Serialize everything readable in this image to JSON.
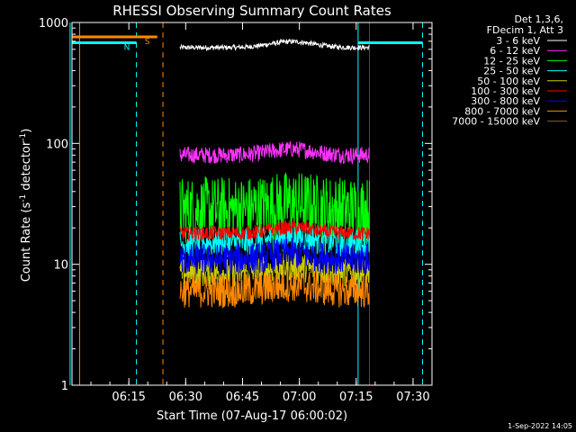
{
  "chart_data": {
    "type": "line",
    "title": "RHESSI Observing Summary Count Rates",
    "xlabel": "Start Time (07-Aug-17 06:00:02)",
    "ylabel_parts": [
      "Count Rate (s",
      "-1",
      " detector",
      "-1",
      ")"
    ],
    "yscale": "log",
    "ylim": [
      1,
      1000
    ],
    "yticks": [
      {
        "value": 1,
        "label": "1"
      },
      {
        "value": 10,
        "label": "10"
      },
      {
        "value": 100,
        "label": "100"
      },
      {
        "value": 1000,
        "label": "1000"
      }
    ],
    "xlim_minutes": [
      0,
      95
    ],
    "xticks": [
      {
        "minute": 15,
        "label": "06:15"
      },
      {
        "minute": 30,
        "label": "06:30"
      },
      {
        "minute": 45,
        "label": "06:45"
      },
      {
        "minute": 60,
        "label": "07:00"
      },
      {
        "minute": 75,
        "label": "07:15"
      },
      {
        "minute": 90,
        "label": "07:30"
      }
    ],
    "legend_header": [
      "Det 1,3,6,",
      "FDecim 1, Att 3"
    ],
    "legend_placement": "right",
    "data_window_minutes": [
      28.5,
      78.5
    ],
    "series": [
      {
        "name": "3 - 6 keV",
        "color": "#ffffff",
        "level": 620,
        "noise": 0.02
      },
      {
        "name": "6 - 12 keV",
        "color": "#ff33ff",
        "level": 80,
        "noise": 0.07
      },
      {
        "name": "12 - 25 keV",
        "color": "#00ff00",
        "level": 28,
        "noise": 0.28
      },
      {
        "name": "25 - 50 keV",
        "color": "#00ffff",
        "level": 15,
        "noise": 0.12
      },
      {
        "name": "50 - 100 keV",
        "color": "#cccc00",
        "level": 8.5,
        "noise": 0.12
      },
      {
        "name": "100 - 300 keV",
        "color": "#ff0000",
        "level": 18,
        "noise": 0.06
      },
      {
        "name": "300 - 800 keV",
        "color": "#0000ff",
        "level": 11,
        "noise": 0.13
      },
      {
        "name": "800 - 7000 keV",
        "color": "#ff8800",
        "level": 6,
        "noise": 0.14
      },
      {
        "name": "7000 - 15000 keV",
        "color": "#886600",
        "level": null,
        "noise": 0
      }
    ],
    "flags": [
      {
        "label": "S",
        "color": "#ff8800",
        "start_minute": 0,
        "end_minute": 22.5,
        "value": 760
      },
      {
        "label": "N",
        "color": "#00ffff",
        "start_minute": -2,
        "end_minute": 17,
        "value": 680
      },
      {
        "label": "",
        "color": "#00ffff",
        "start_minute": 75.5,
        "end_minute": 92.5,
        "value": 680
      }
    ],
    "markers": [
      {
        "minute": -0.5,
        "color": "#00ffff",
        "style": "solid"
      },
      {
        "minute": 2,
        "color": "#ff8800",
        "style": "solid"
      },
      {
        "minute": 17,
        "color": "#00ffff",
        "style": "dashed"
      },
      {
        "minute": 24,
        "color": "#ff8800",
        "style": "dashed"
      },
      {
        "minute": 75.5,
        "color": "#00ffff",
        "style": "solid"
      },
      {
        "minute": 78.5,
        "color": "#ff0000",
        "style": "solid"
      },
      {
        "minute": 92.5,
        "color": "#00ffff",
        "style": "dashed"
      }
    ],
    "grid": false
  },
  "footer": {
    "timestamp": "1-Sep-2022 14:05"
  }
}
